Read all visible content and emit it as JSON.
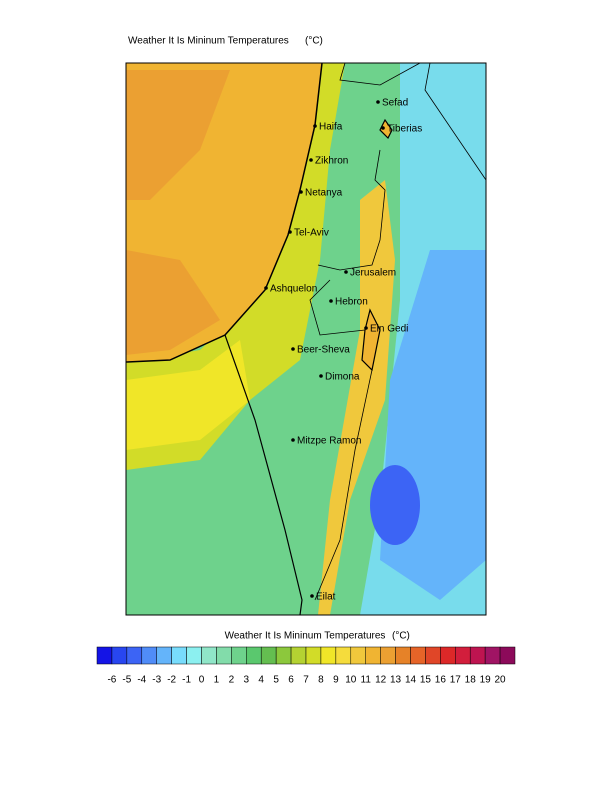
{
  "header": {
    "title": "Weather It Is Mininum Temperatures",
    "units": "(°C)"
  },
  "cities": [
    "Sefad",
    "Haifa",
    "Tiberias",
    "Zikhron",
    "Netanya",
    "Tel-Aviv",
    "Jerusalem",
    "Ashquelon",
    "Hebron",
    "Ein Gedi",
    "Beer-Sheva",
    "Dimona",
    "Mitzpe Ramon",
    "Eilat"
  ],
  "colorbar": {
    "title": "Weather It Is Mininum Temperatures",
    "units": "(°C)",
    "labels": [
      -6,
      -5,
      -4,
      -3,
      -2,
      -1,
      0,
      1,
      2,
      3,
      4,
      5,
      6,
      7,
      8,
      9,
      10,
      11,
      12,
      13,
      14,
      15,
      16,
      17,
      18,
      19,
      20
    ],
    "colors": [
      "#1414e6",
      "#2846f0",
      "#3c64f5",
      "#508cf8",
      "#64b4fa",
      "#78dcfc",
      "#8cf0f0",
      "#90e6c8",
      "#82dcaa",
      "#6ed28c",
      "#5ac86e",
      "#64be50",
      "#8cc83c",
      "#b4d232",
      "#d2dc28",
      "#f0e628",
      "#f5dc3c",
      "#f0c83c",
      "#f0b432",
      "#eba032",
      "#e68228",
      "#e66428",
      "#e04628",
      "#dc2828",
      "#d21e3c",
      "#be1450",
      "#a01464",
      "#8c0a5a"
    ]
  }
}
